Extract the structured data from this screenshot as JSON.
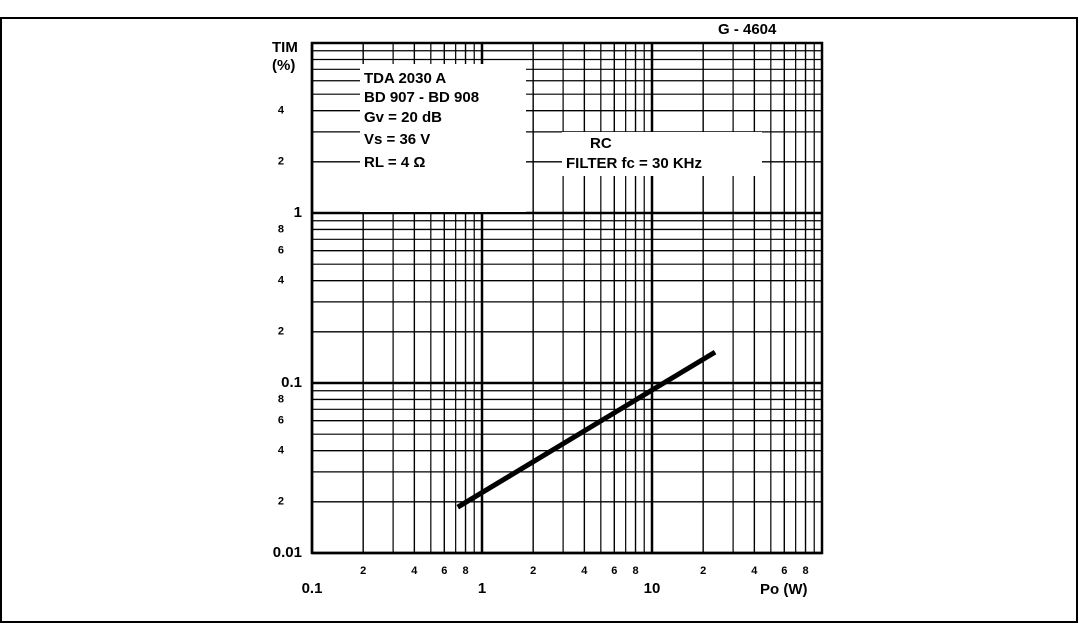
{
  "chart_data": {
    "type": "line",
    "code": "G - 4604",
    "y_label": "TIM",
    "y_unit": "(%)",
    "x_label": "Po (W)",
    "log_x": true,
    "log_y": true,
    "grid": true,
    "xlim": [
      0.1,
      100
    ],
    "ylim": [
      0.01,
      10
    ],
    "xticks": [
      0.1,
      {
        "value": 0.2,
        "label": "2"
      },
      {
        "value": 0.4,
        "label": "4"
      },
      {
        "value": 0.6,
        "label": "6"
      },
      {
        "value": 0.8,
        "label": "8"
      },
      1,
      {
        "value": 2,
        "label": "2"
      },
      {
        "value": 4,
        "label": "4"
      },
      {
        "value": 6,
        "label": "6"
      },
      {
        "value": 8,
        "label": "8"
      },
      10,
      {
        "value": 20,
        "label": "2"
      },
      {
        "value": 40,
        "label": "4"
      },
      {
        "value": 60,
        "label": "6"
      },
      {
        "value": 80,
        "label": "8"
      }
    ],
    "yticks": [
      0.01,
      {
        "value": 0.02,
        "label": "2"
      },
      {
        "value": 0.04,
        "label": "4"
      },
      {
        "value": 0.06,
        "label": "6"
      },
      {
        "value": 0.08,
        "label": "8"
      },
      0.1,
      {
        "value": 0.2,
        "label": "2"
      },
      {
        "value": 0.4,
        "label": "4"
      },
      {
        "value": 0.6,
        "label": "6"
      },
      {
        "value": 0.8,
        "label": "8"
      },
      1,
      {
        "value": 2,
        "label": "2"
      },
      {
        "value": 4,
        "label": "4"
      }
    ],
    "x_minor_grid": [
      0.3,
      0.5,
      0.7,
      0.9,
      3,
      5,
      7,
      9,
      30,
      50,
      70,
      90
    ],
    "y_minor_grid": [
      0.03,
      0.05,
      0.07,
      0.09,
      0.3,
      0.5,
      0.7,
      0.9,
      3,
      5,
      6,
      7,
      8,
      9
    ],
    "conditions": [
      "TDA 2030 A",
      "BD 907 - BD 908",
      "Gv = 20 dB",
      "Vs = 36 V",
      "RL = 4 Ω"
    ],
    "filter_note": [
      "RC",
      "FILTER fc = 30 KHz"
    ],
    "series": [
      {
        "color": "#000000",
        "x": [
          0.72,
          23.5
        ],
        "values": [
          0.0186,
          0.152
        ]
      }
    ]
  }
}
